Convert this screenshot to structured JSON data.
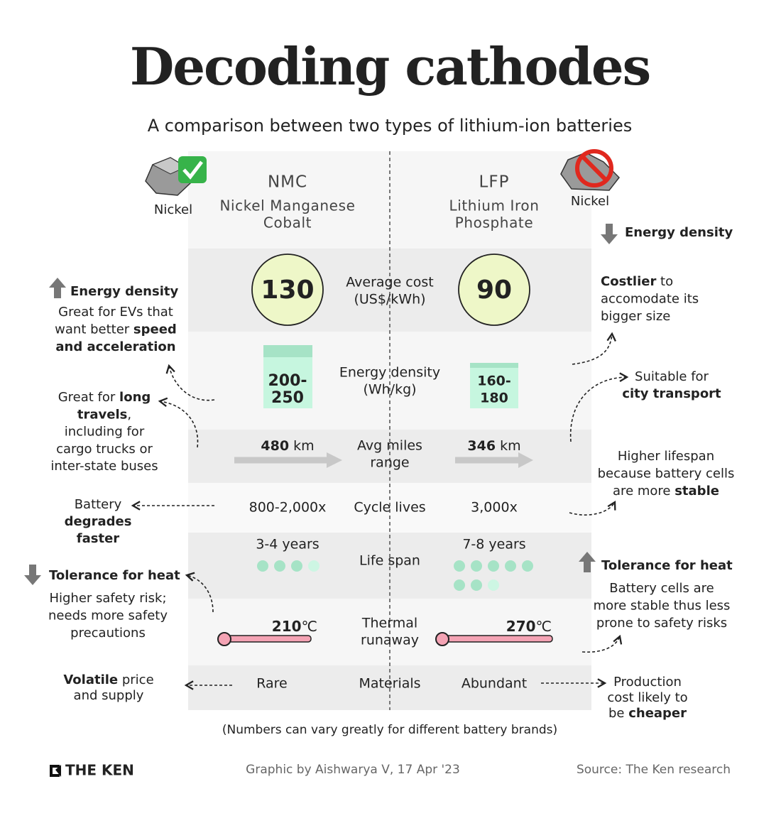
{
  "header": {
    "title": "Decoding cathodes",
    "subtitle": "A comparison between two types of lithium-ion batteries"
  },
  "columns": [
    {
      "code": "NMC",
      "name": [
        "Nickel Manganese",
        "Cobalt"
      ],
      "nickel": "Nickel"
    },
    {
      "code": "LFP",
      "name": [
        "Lithium Iron",
        "Phosphate"
      ],
      "nickel": "Nickel"
    }
  ],
  "rows": {
    "cost": {
      "label": [
        "Average cost",
        "(US$/kWh)"
      ],
      "values": [
        130,
        90
      ]
    },
    "energy": {
      "label": [
        "Energy density",
        "(Wh/kg)"
      ],
      "values": [
        [
          "200-",
          "250"
        ],
        [
          "160-",
          "180"
        ]
      ]
    },
    "range": {
      "label": [
        "Avg miles",
        "range"
      ],
      "values": [
        480,
        346
      ],
      "unit": "km"
    },
    "cycles": {
      "label": "Cycle lives",
      "values": [
        "800-2,000x",
        "3,000x"
      ]
    },
    "lifespan": {
      "label": "Life span",
      "values": [
        "3-4 years",
        "7-8 years"
      ]
    },
    "thermal": {
      "label": [
        "Thermal",
        "runaway"
      ],
      "values": [
        210,
        270
      ],
      "unit": "℃"
    },
    "materials": {
      "label": "Materials",
      "values": [
        "Rare",
        "Abundant"
      ]
    }
  },
  "annotations": {
    "left": [
      {
        "heading": "Energy density",
        "lines": [
          [
            {
              "text": "Great for EVs that"
            }
          ],
          [
            {
              "text": "want better "
            },
            {
              "text": "speed",
              "bold": true
            }
          ],
          [
            {
              "text": "and acceleration",
              "bold": true
            }
          ]
        ]
      },
      {
        "lines": [
          [
            {
              "text": "Great for "
            },
            {
              "text": "long",
              "bold": true
            }
          ],
          [
            {
              "text": "travels",
              "bold": true
            },
            {
              "text": ","
            }
          ],
          [
            {
              "text": "including for"
            }
          ],
          [
            {
              "text": "cargo trucks or"
            }
          ],
          [
            {
              "text": "inter-state buses"
            }
          ]
        ]
      },
      {
        "lines": [
          [
            {
              "text": "Battery"
            }
          ],
          [
            {
              "text": "degrades",
              "bold": true
            }
          ],
          [
            {
              "text": "faster",
              "bold": true
            }
          ]
        ]
      },
      {
        "heading": "Tolerance for heat",
        "lines": [
          [
            {
              "text": "Higher safety risk;"
            }
          ],
          [
            {
              "text": "needs more safety"
            }
          ],
          [
            {
              "text": "precautions"
            }
          ]
        ]
      },
      {
        "lines": [
          [
            {
              "text": "Volatile",
              "bold": true
            },
            {
              "text": " price"
            }
          ],
          [
            {
              "text": "and supply"
            }
          ]
        ]
      }
    ],
    "right": [
      {
        "heading": "Energy density",
        "lines": []
      },
      {
        "lines": [
          [
            {
              "text": "Costlier",
              "bold": true
            },
            {
              "text": " to"
            }
          ],
          [
            {
              "text": "accomodate its"
            }
          ],
          [
            {
              "text": "bigger size"
            }
          ]
        ]
      },
      {
        "lines": [
          [
            {
              "text": "Suitable for"
            }
          ],
          [
            {
              "text": "city transport",
              "bold": true
            }
          ]
        ]
      },
      {
        "lines": [
          [
            {
              "text": "Higher lifespan"
            }
          ],
          [
            {
              "text": "because battery cells"
            }
          ],
          [
            {
              "text": "are more "
            },
            {
              "text": "stable",
              "bold": true
            }
          ]
        ]
      },
      {
        "heading": "Tolerance for heat",
        "lines": [
          [
            {
              "text": "Battery cells are"
            }
          ],
          [
            {
              "text": "more stable thus less"
            }
          ],
          [
            {
              "text": "prone to safety risks"
            }
          ]
        ]
      },
      {
        "lines": [
          [
            {
              "text": "Production"
            }
          ],
          [
            {
              "text": "cost likely to"
            }
          ],
          [
            {
              "text": "be "
            },
            {
              "text": "cheaper",
              "bold": true
            }
          ]
        ]
      }
    ]
  },
  "note": "(Numbers can vary greatly for different battery brands)",
  "footer": {
    "logo": "THE KEN",
    "credit": "Graphic by Aishwarya V, 17 Apr '23",
    "source": "Source: The Ken research"
  }
}
